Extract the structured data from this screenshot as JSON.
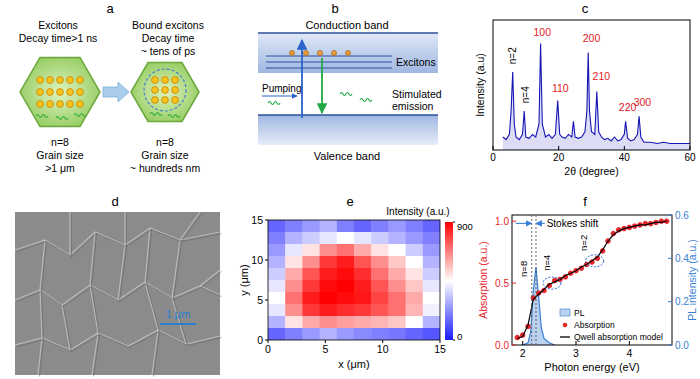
{
  "panel_labels": [
    "a",
    "b",
    "c",
    "d",
    "e",
    "f"
  ],
  "diagram_a": {
    "left": {
      "title": "Excitons",
      "decay": "Decay time>1 ns",
      "n": "n=8",
      "grain_label": "Grain size",
      "grain": ">1 μm"
    },
    "right": {
      "title": "Bound excitons",
      "decay": "Decay time",
      "decay_value": "~ tens of ps",
      "n": "n=8",
      "grain_label": "Grain size",
      "grain": "~ hundreds nm"
    }
  },
  "diagram_b": {
    "conduction_band": "Conduction band",
    "valence_band": "Valence band",
    "excitons": "Excitons",
    "pumping": "Pumping",
    "emission": "Stimulated emission"
  },
  "image_d": {
    "scale_bar": "1 μm"
  },
  "chart_data": [
    {
      "type": "line",
      "xlabel": "2θ (degree)",
      "ylabel": "Intensity (a.u)",
      "color": "#1515b5",
      "x": [
        3,
        4,
        5,
        5.5,
        6,
        6.5,
        7,
        8,
        9,
        9.5,
        10,
        11,
        12,
        13,
        14,
        14.5,
        15,
        16,
        17,
        18,
        19,
        19.7,
        20.3,
        21,
        22,
        23,
        24,
        24.5,
        25,
        26,
        27,
        28,
        28.6,
        29,
        29.4,
        30,
        31,
        31.6,
        32.2,
        33,
        34,
        35,
        36,
        37,
        38,
        39,
        40,
        40.4,
        41,
        42,
        43,
        44,
        44.5,
        45,
        46,
        48,
        50,
        52,
        54,
        56,
        58,
        60
      ],
      "values": [
        0.1,
        0.08,
        0.12,
        0.3,
        0.6,
        0.2,
        0.1,
        0.08,
        0.12,
        0.3,
        0.1,
        0.09,
        0.12,
        0.1,
        0.2,
        0.82,
        0.2,
        0.1,
        0.12,
        0.09,
        0.12,
        0.38,
        0.12,
        0.1,
        0.09,
        0.12,
        0.1,
        0.22,
        0.1,
        0.09,
        0.1,
        0.14,
        0.3,
        0.75,
        0.3,
        0.14,
        0.12,
        0.45,
        0.14,
        0.1,
        0.08,
        0.09,
        0.07,
        0.1,
        0.07,
        0.08,
        0.12,
        0.22,
        0.09,
        0.07,
        0.08,
        0.12,
        0.26,
        0.1,
        0.06,
        0.06,
        0.05,
        0.06,
        0.05,
        0.05,
        0.05,
        0.05
      ],
      "xlim": [
        0,
        60
      ],
      "xticks": [
        0,
        20,
        40,
        60
      ],
      "ylim": [
        0,
        1
      ],
      "tick_labels": "x",
      "annotations": [
        {
          "text": "n=2",
          "x": 6,
          "y": 0.66
        },
        {
          "text": "n=4",
          "x": 10,
          "y": 0.36
        },
        {
          "text": "100",
          "x": 15,
          "y": 0.88
        },
        {
          "text": "110",
          "x": 20.5,
          "y": 0.45
        },
        {
          "text": "200",
          "x": 30,
          "y": 0.83
        },
        {
          "text": "210",
          "x": 33,
          "y": 0.54
        },
        {
          "text": "220",
          "x": 41,
          "y": 0.3
        },
        {
          "text": "300",
          "x": 45.5,
          "y": 0.34
        }
      ]
    },
    {
      "type": "heatmap",
      "xlabel": "x (μm)",
      "ylabel": "y (μm)",
      "xlim": [
        0,
        15
      ],
      "ylim": [
        0,
        15
      ],
      "xticks": [
        0,
        5,
        10,
        15
      ],
      "yticks": [
        0,
        5,
        10,
        15
      ],
      "cells": [
        [
          150,
          200,
          250,
          300,
          200,
          150,
          200,
          250,
          200,
          150
        ],
        [
          200,
          300,
          350,
          400,
          450,
          400,
          350,
          300,
          250,
          200
        ],
        [
          250,
          400,
          500,
          650,
          700,
          600,
          500,
          450,
          350,
          250
        ],
        [
          300,
          500,
          650,
          800,
          850,
          750,
          650,
          550,
          450,
          300
        ],
        [
          350,
          600,
          750,
          850,
          880,
          820,
          700,
          600,
          500,
          350
        ],
        [
          400,
          650,
          800,
          880,
          900,
          850,
          750,
          650,
          550,
          400
        ],
        [
          450,
          700,
          850,
          900,
          880,
          860,
          780,
          700,
          600,
          450
        ],
        [
          400,
          650,
          800,
          850,
          820,
          800,
          750,
          700,
          580,
          420
        ],
        [
          300,
          500,
          600,
          650,
          620,
          600,
          580,
          550,
          450,
          300
        ],
        [
          150,
          200,
          250,
          300,
          250,
          220,
          200,
          180,
          150,
          120
        ]
      ],
      "colorbar": {
        "label": "Intensity (a.u.)",
        "range": [
          0,
          900
        ],
        "ticks": [
          0,
          900
        ],
        "colors": [
          "#1a1aff",
          "#ffffff",
          "#ff0000"
        ]
      }
    },
    {
      "type": "line",
      "xlabel": "Photon energy (eV)",
      "ylabel": "Absorption (a.u.)",
      "y2label": "PL intensity (a.u.)",
      "xlim": [
        1.8,
        4.8
      ],
      "xticks": [
        2,
        3,
        4
      ],
      "ylim": [
        0,
        1.05
      ],
      "yticks": [
        {
          "value": 0,
          "label": "0.0"
        },
        0.5,
        {
          "value": 1,
          "label": "1.0"
        }
      ],
      "y2lim": [
        0,
        0.6
      ],
      "y2ticks": [
        {
          "value": 0,
          "label": "0.0"
        },
        0.2,
        0.4,
        0.6
      ],
      "legend": "lower right",
      "series": [
        {
          "name": "PL",
          "type": "area",
          "axis": "y2",
          "color": "#3a7fd5",
          "x": [
            2.0,
            2.1,
            2.15,
            2.2,
            2.25,
            2.3,
            2.35,
            2.4,
            2.5,
            2.6
          ],
          "values": [
            0,
            0.01,
            0.06,
            0.25,
            0.36,
            0.22,
            0.08,
            0.03,
            0.01,
            0
          ]
        },
        {
          "name": "Absorption",
          "type": "scatter",
          "marker": "circle",
          "color": "#e8262a",
          "x": [
            1.9,
            2.0,
            2.1,
            2.2,
            2.3,
            2.4,
            2.5,
            2.6,
            2.7,
            2.8,
            2.9,
            3.0,
            3.1,
            3.2,
            3.3,
            3.4,
            3.5,
            3.6,
            3.7,
            3.8,
            3.9,
            4.0,
            4.1,
            4.2,
            4.3,
            4.4,
            4.5,
            4.6,
            4.7
          ],
          "values": [
            0.06,
            0.08,
            0.15,
            0.38,
            0.42,
            0.44,
            0.48,
            0.52,
            0.53,
            0.55,
            0.58,
            0.6,
            0.62,
            0.65,
            0.67,
            0.7,
            0.76,
            0.84,
            0.9,
            0.93,
            0.94,
            0.95,
            0.96,
            0.97,
            0.98,
            0.98,
            0.99,
            1,
            1
          ]
        },
        {
          "name": "Qwell absorption model",
          "type": "line",
          "color": "#000000",
          "x": [
            1.9,
            2.0,
            2.1,
            2.2,
            2.3,
            2.4,
            2.5,
            2.6,
            2.7,
            2.8,
            2.9,
            3.0,
            3.1,
            3.2,
            3.3,
            3.4,
            3.5,
            3.6,
            3.7,
            3.8,
            3.9,
            4.0,
            4.1,
            4.2,
            4.3,
            4.4,
            4.5,
            4.6,
            4.7
          ],
          "values": [
            0.05,
            0.07,
            0.16,
            0.37,
            0.41,
            0.45,
            0.49,
            0.51,
            0.53,
            0.56,
            0.58,
            0.6,
            0.63,
            0.65,
            0.68,
            0.71,
            0.77,
            0.84,
            0.89,
            0.92,
            0.94,
            0.95,
            0.96,
            0.97,
            0.97,
            0.98,
            0.99,
            0.99,
            1
          ]
        }
      ],
      "annotations": [
        {
          "text": "Stokes shift",
          "x": 2.45,
          "y": 0.95,
          "x_range": [
            2.17,
            2.25
          ]
        },
        {
          "text": "n=8",
          "x": 2.08,
          "y": 0.55
        },
        {
          "text": "n=4",
          "x": 2.52,
          "y": 0.6,
          "point": [
            2.55,
            0.5
          ]
        },
        {
          "text": "n=2",
          "x": 3.2,
          "y": 0.76,
          "point": [
            3.35,
            0.68
          ]
        }
      ]
    }
  ]
}
